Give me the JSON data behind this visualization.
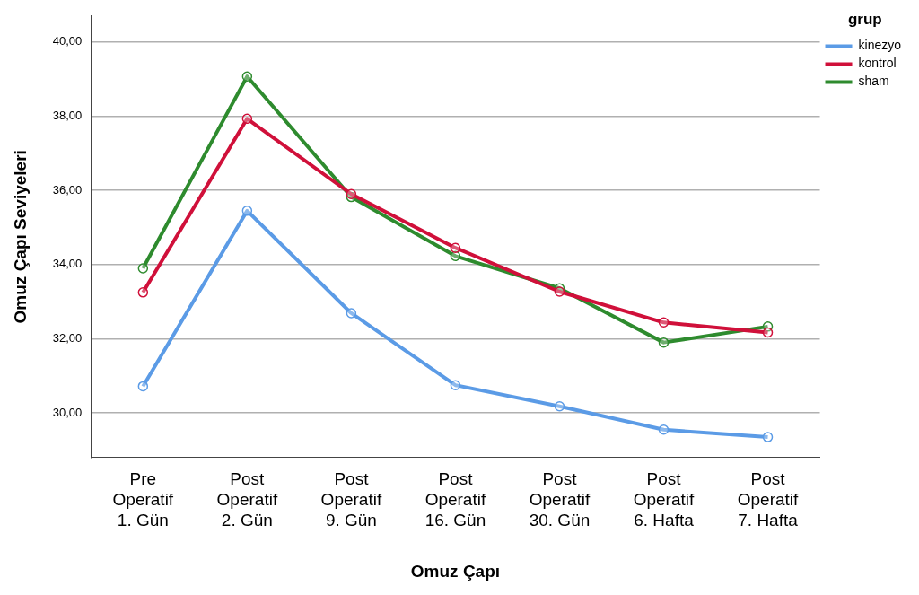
{
  "chart_data": {
    "type": "line",
    "xlabel": "Omuz Çapı",
    "ylabel": "Omuz Çapı Seviyeleri",
    "legend_title": "grup",
    "legend": "top right",
    "grid": "y",
    "marker": "circle",
    "line_style": "solid",
    "categories": [
      "Pre Operatif 1. Gün",
      "Post Operatif 2. Gün",
      "Post Operatif 9. Gün",
      "Post Operatif 16. Gün",
      "Post Operatif 30. Gün",
      "Post Operatif 6. Hafta",
      "Post Operatif 7. Hafta"
    ],
    "ylim": [
      28.8,
      40.7
    ],
    "yticks": [
      {
        "value": 30,
        "label": "30,00"
      },
      {
        "value": 32,
        "label": "32,00"
      },
      {
        "value": 34,
        "label": "34,00"
      },
      {
        "value": 36,
        "label": "36,00"
      },
      {
        "value": 38,
        "label": "38,00"
      },
      {
        "value": 40,
        "label": "40,00"
      }
    ],
    "series": [
      {
        "name": "kinezyo",
        "color": "#5b9be6",
        "values": [
          30.72,
          35.45,
          32.69,
          30.75,
          30.18,
          29.55,
          29.35
        ]
      },
      {
        "name": "kontrol",
        "color": "#d0103a",
        "values": [
          33.25,
          37.93,
          35.9,
          34.45,
          33.27,
          32.44,
          32.17
        ]
      },
      {
        "name": "sham",
        "color": "#2e8b2e",
        "values": [
          33.9,
          39.07,
          35.82,
          34.23,
          33.36,
          31.9,
          32.33
        ]
      }
    ]
  }
}
